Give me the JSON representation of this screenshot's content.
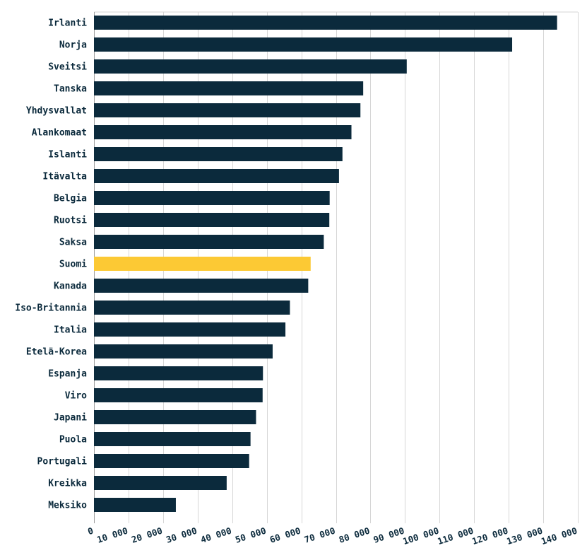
{
  "chart_data": {
    "type": "bar",
    "orientation": "horizontal",
    "categories": [
      "Irlanti",
      "Norja",
      "Sveitsi",
      "Tanska",
      "Yhdysvallat",
      "Alankomaat",
      "Islanti",
      "Itävalta",
      "Belgia",
      "Ruotsi",
      "Saksa",
      "Suomi",
      "Kanada",
      "Iso-Britannia",
      "Italia",
      "Etelä-Korea",
      "Espanja",
      "Viro",
      "Japani",
      "Puola",
      "Portugali",
      "Kreikka",
      "Meksiko"
    ],
    "values": [
      134000,
      121000,
      90500,
      77900,
      77100,
      74500,
      71900,
      70900,
      68200,
      68100,
      66500,
      62700,
      62000,
      56700,
      55400,
      51700,
      48900,
      48800,
      46900,
      45300,
      44900,
      38400,
      23700
    ],
    "highlight": "Suomi",
    "xlim": [
      0,
      140000
    ],
    "xticks": [
      0,
      10000,
      20000,
      30000,
      40000,
      50000,
      60000,
      70000,
      80000,
      90000,
      100000,
      110000,
      120000,
      130000,
      140000
    ],
    "xtick_labels": [
      "0",
      "10 000",
      "20 000",
      "30 000",
      "40 000",
      "50 000",
      "60 000",
      "70 000",
      "80 000",
      "90 000",
      "100 000",
      "110 000",
      "120 000",
      "130 000",
      "140 000"
    ],
    "grid": "vertical",
    "title": "",
    "xlabel": "",
    "ylabel": "",
    "colors": {
      "bar": "#0b2a3c",
      "highlight": "#fcc934",
      "grid": "#d6d6d6"
    }
  }
}
